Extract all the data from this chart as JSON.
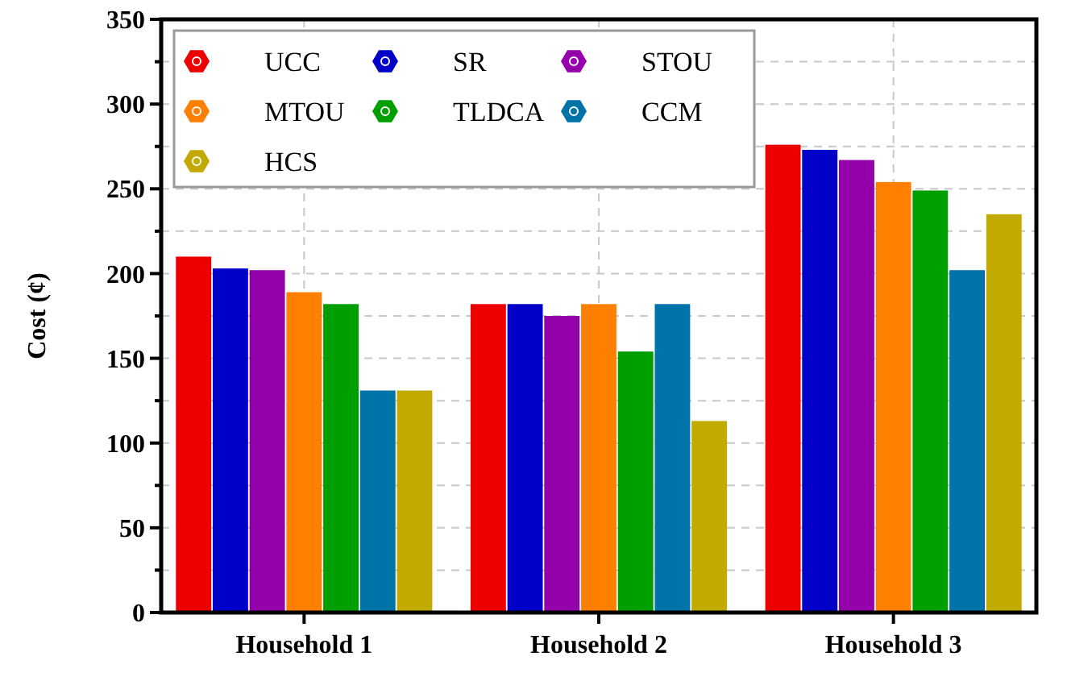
{
  "chart_data": {
    "type": "bar",
    "ylabel": "Cost (¢)",
    "categories": [
      "Household 1",
      "Household 2",
      "Household 3"
    ],
    "series": [
      {
        "name": "UCC",
        "color": "#ee0000",
        "values": [
          210,
          182,
          276
        ]
      },
      {
        "name": "SR",
        "color": "#0000c8",
        "values": [
          203,
          182,
          273
        ]
      },
      {
        "name": "STOU",
        "color": "#9400aa",
        "values": [
          202,
          175,
          267
        ]
      },
      {
        "name": "MTOU",
        "color": "#ff7f00",
        "values": [
          189,
          182,
          254
        ]
      },
      {
        "name": "TLDCA",
        "color": "#009f00",
        "values": [
          182,
          154,
          249
        ]
      },
      {
        "name": "CCM",
        "color": "#0074a8",
        "values": [
          131,
          182,
          202
        ]
      },
      {
        "name": "HCS",
        "color": "#c2aa00",
        "values": [
          131,
          113,
          235
        ]
      }
    ],
    "ylim": [
      0,
      350
    ],
    "yticks": [
      0,
      {
        "value": 25,
        "label": null
      },
      50,
      {
        "value": 75,
        "label": null
      },
      100,
      {
        "value": 125,
        "label": null
      },
      150,
      {
        "value": 175,
        "label": null
      },
      200,
      {
        "value": 225,
        "label": null
      },
      250,
      {
        "value": 275,
        "label": null
      },
      300,
      {
        "value": 325,
        "label": null
      },
      350
    ],
    "grid": true,
    "legend": "top left"
  }
}
